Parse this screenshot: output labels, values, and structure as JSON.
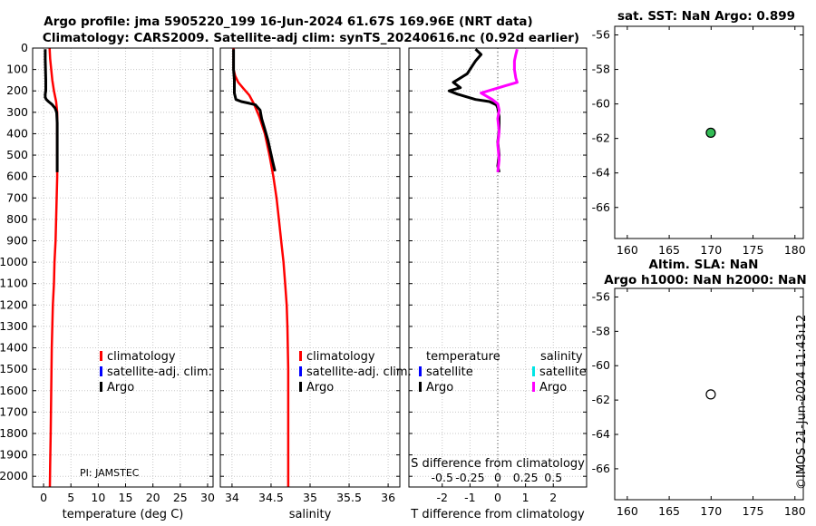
{
  "title_line1": "Argo profile: jma 5905220_199 16-Jun-2024 61.67S 169.96E (NRT data)",
  "title_line2": "Climatology: CARS2009. Satellite-adj clim: synTS_20240616.nc (0.92d earlier)",
  "credit": "©IMOS 21-Jun-2024 11:43:12",
  "pi_label": "PI: JAMSTEC",
  "colors": {
    "climatology": "#ff0000",
    "satellite_adj": "#0000ff",
    "argo": "#000000",
    "salinity_argo": "#ff00ff",
    "satellite_sal": "#00e5e5",
    "marker_fill": "#33bb55",
    "grid": "#c8c8c8"
  },
  "chart_data": [
    {
      "id": "temperature",
      "type": "line",
      "xlabel": "temperature (deg C)",
      "ylabel": "",
      "xlim": [
        -2,
        31
      ],
      "ylim": [
        2050,
        0
      ],
      "xticks": [
        0,
        5,
        10,
        15,
        20,
        25,
        30
      ],
      "yticks": [
        0,
        100,
        200,
        300,
        400,
        500,
        600,
        700,
        800,
        900,
        1000,
        1100,
        1200,
        1300,
        1400,
        1500,
        1600,
        1700,
        1800,
        1900,
        2000
      ],
      "legend": {
        "position": "center-right",
        "entries": [
          "climatology",
          "satellite-adj. clim.",
          "Argo"
        ]
      },
      "series": [
        {
          "name": "climatology",
          "color": "#ff0000",
          "x": [
            1.1,
            1.2,
            1.4,
            1.6,
            1.9,
            2.3,
            2.5,
            2.5,
            2.5,
            2.5,
            2.4,
            2.3,
            2.2,
            2.0,
            1.9,
            1.7,
            1.6,
            1.5,
            1.4,
            1.3,
            1.2,
            1.15
          ],
          "y": [
            0,
            50,
            100,
            150,
            200,
            250,
            300,
            400,
            500,
            600,
            700,
            800,
            900,
            1000,
            1100,
            1200,
            1300,
            1400,
            1600,
            1800,
            1950,
            2050
          ]
        },
        {
          "name": "Argo",
          "color": "#000000",
          "x": [
            0.3,
            0.3,
            0.35,
            0.4,
            0.4,
            0.3,
            0.3,
            0.5,
            0.9,
            1.5,
            2.1,
            2.4,
            2.5,
            2.5,
            2.5,
            2.5
          ],
          "y": [
            5,
            50,
            100,
            150,
            200,
            215,
            230,
            240,
            250,
            262,
            280,
            300,
            350,
            400,
            500,
            580
          ]
        }
      ]
    },
    {
      "id": "salinity",
      "type": "line",
      "xlabel": "salinity",
      "ylabel": "",
      "xlim": [
        33.85,
        36.15
      ],
      "ylim": [
        2050,
        0
      ],
      "xticks": [
        34,
        34.5,
        35,
        35.5,
        36
      ],
      "legend": {
        "position": "center-right",
        "entries": [
          "climatology",
          "satellite-adj. clim.",
          "Argo"
        ]
      },
      "series": [
        {
          "name": "climatology",
          "color": "#ff0000",
          "x": [
            34.02,
            34.02,
            34.04,
            34.08,
            34.15,
            34.22,
            34.28,
            34.35,
            34.42,
            34.48,
            34.53,
            34.57,
            34.6,
            34.63,
            34.66,
            34.68,
            34.7,
            34.71,
            34.72,
            34.72,
            34.72
          ],
          "y": [
            0,
            100,
            130,
            160,
            190,
            220,
            260,
            320,
            400,
            500,
            600,
            700,
            800,
            900,
            1000,
            1100,
            1200,
            1300,
            1500,
            1800,
            2050
          ]
        },
        {
          "name": "Argo",
          "color": "#000000",
          "x": [
            34.02,
            34.02,
            34.03,
            34.03,
            34.05,
            34.12,
            34.22,
            34.3,
            34.36,
            34.38,
            34.42,
            34.46,
            34.49,
            34.52,
            34.55
          ],
          "y": [
            5,
            100,
            150,
            210,
            240,
            250,
            258,
            265,
            290,
            330,
            380,
            430,
            480,
            530,
            575
          ]
        }
      ]
    },
    {
      "id": "difference",
      "type": "line",
      "xlabel": "T difference from climatology",
      "xlabel_top": "S difference from climatology",
      "xlim": [
        -3.2,
        3.2
      ],
      "ylim": [
        2050,
        0
      ],
      "xticks": [
        -2,
        -1,
        0,
        1,
        2
      ],
      "xticks_top": [
        -0.5,
        -0.25,
        0,
        0.25,
        0.5
      ],
      "xticks_top_labels": [
        "-0.5",
        "-0.25",
        "0",
        "0.25",
        "0.5"
      ],
      "legend": {
        "position": "center",
        "temperature_title": "temperature",
        "salinity_title": "salinity",
        "entries_temperature": [
          "satellite",
          "Argo"
        ],
        "entries_salinity": [
          "satellite",
          "Argo"
        ]
      },
      "series": [
        {
          "name": "temperature Argo",
          "color": "#000000",
          "x": [
            -0.8,
            -0.6,
            -0.8,
            -0.95,
            -1.1,
            -1.6,
            -1.35,
            -1.75,
            -1.45,
            -0.8,
            -0.3,
            -0.05,
            0.0,
            0.05,
            0.05,
            0.0,
            0.05,
            0.0,
            0.05
          ],
          "y": [
            5,
            30,
            60,
            90,
            120,
            160,
            185,
            200,
            215,
            240,
            250,
            265,
            280,
            320,
            380,
            440,
            500,
            550,
            580
          ]
        },
        {
          "name": "salinity Argo",
          "color": "#ff00ff",
          "x": [
            0.7,
            0.65,
            0.6,
            0.6,
            0.65,
            0.7,
            0.3,
            -0.6,
            -0.2,
            0.0,
            0.05,
            0.0,
            0.05,
            0.0,
            0.05,
            0.0
          ],
          "y": [
            5,
            30,
            60,
            100,
            140,
            160,
            175,
            210,
            240,
            260,
            290,
            330,
            390,
            450,
            520,
            580
          ]
        }
      ]
    },
    {
      "id": "sst_map",
      "type": "scatter",
      "title": "sat. SST: NaN Argo: 0.899",
      "xlim": [
        158.5,
        181
      ],
      "ylim": [
        -67.8,
        -55.5
      ],
      "xticks": [
        160,
        165,
        170,
        175,
        180
      ],
      "yticks": [
        -56,
        -58,
        -60,
        -62,
        -64,
        -66
      ],
      "yticks_labels": [
        "-56",
        "-58",
        "-60",
        "-62",
        "-64",
        "-66"
      ],
      "points": [
        {
          "x": 169.96,
          "y": -61.67,
          "filled": true
        }
      ]
    },
    {
      "id": "sla_map",
      "type": "scatter",
      "title": "Altim. SLA: NaN",
      "subtitle": "Argo h1000: NaN h2000: NaN",
      "xlim": [
        158.5,
        181
      ],
      "ylim": [
        -67.8,
        -55.5
      ],
      "xticks": [
        160,
        165,
        170,
        175,
        180
      ],
      "yticks": [
        -56,
        -58,
        -60,
        -62,
        -64,
        -66
      ],
      "yticks_labels": [
        "-56",
        "-58",
        "-60",
        "-62",
        "-64",
        "-66"
      ],
      "points": [
        {
          "x": 169.96,
          "y": -61.67,
          "filled": false
        }
      ]
    }
  ]
}
